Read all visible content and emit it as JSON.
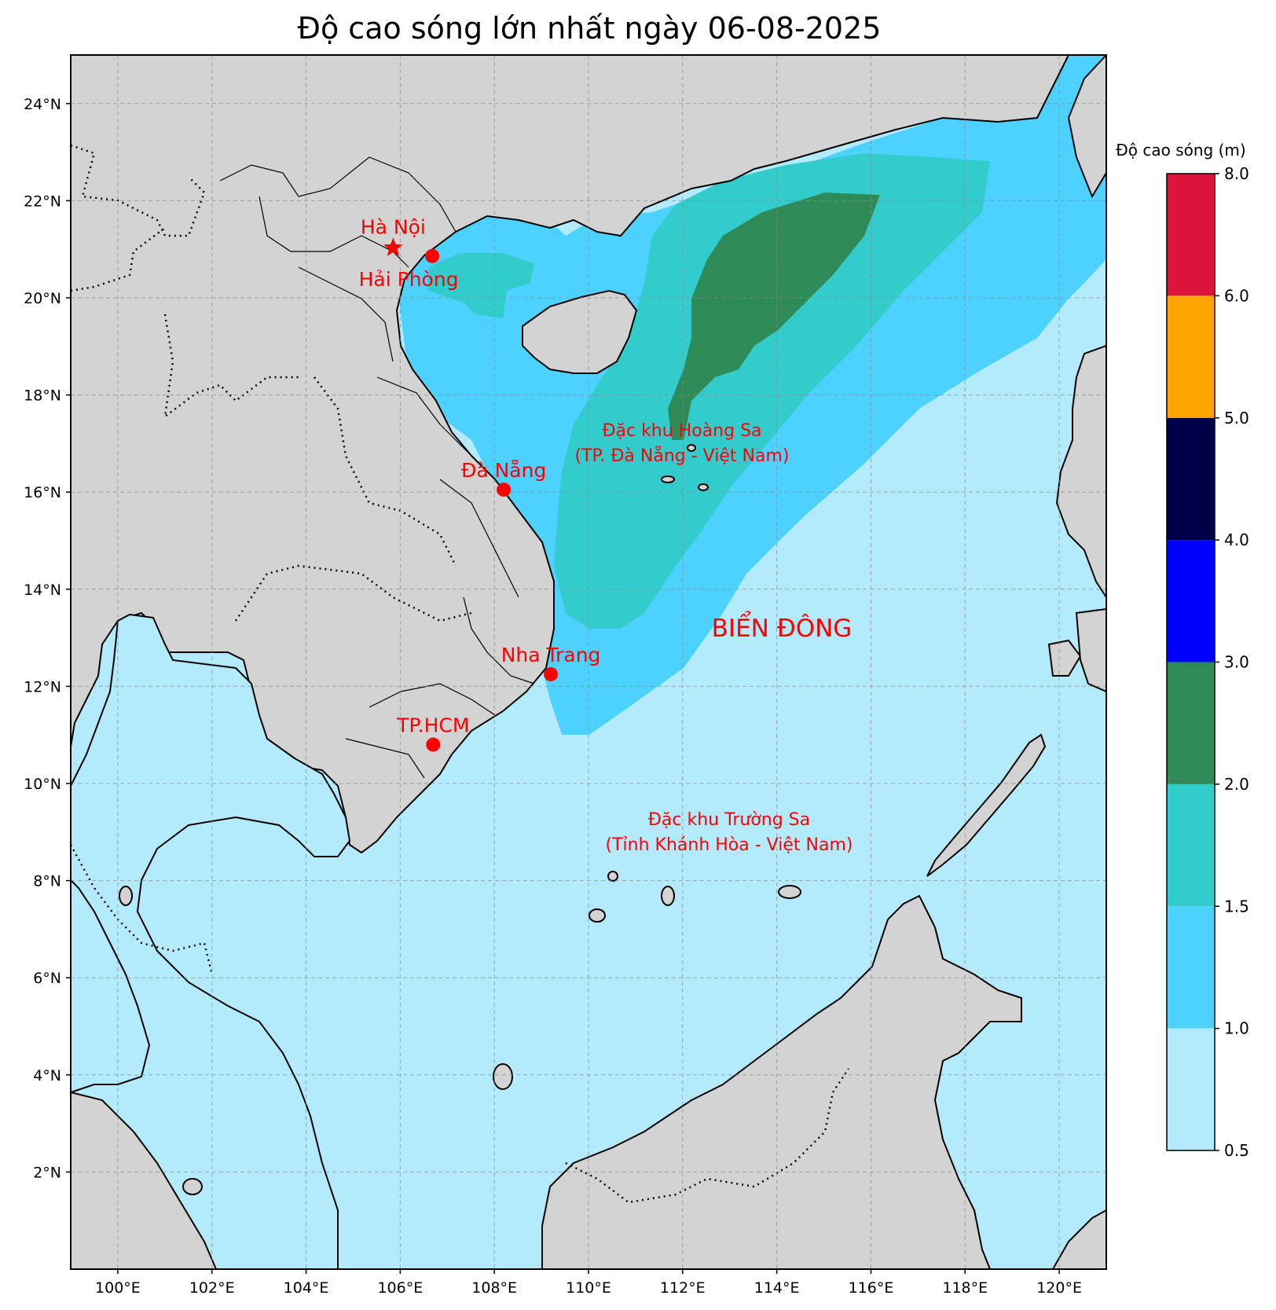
{
  "title": "Độ cao sóng lớn nhất ngày 06-08-2025",
  "map": {
    "lon_range": [
      99,
      121
    ],
    "lat_range": [
      0,
      25
    ],
    "lon_ticks": [
      "100°E",
      "102°E",
      "104°E",
      "106°E",
      "108°E",
      "110°E",
      "112°E",
      "114°E",
      "116°E",
      "118°E",
      "120°E"
    ],
    "lat_ticks": [
      "2°N",
      "4°N",
      "6°N",
      "8°N",
      "10°N",
      "12°N",
      "14°N",
      "16°N",
      "18°N",
      "20°N",
      "22°N",
      "24°N"
    ],
    "gridlines": true
  },
  "places": [
    {
      "name": "Hà Nội",
      "lon": 105.85,
      "lat": 21.03,
      "marker": "star"
    },
    {
      "name": "Hải Phòng",
      "lon": 106.68,
      "lat": 20.86,
      "marker": "circle"
    },
    {
      "name": "Đà Nẵng",
      "lon": 108.2,
      "lat": 16.05,
      "marker": "circle"
    },
    {
      "name": "Nha Trang",
      "lon": 109.2,
      "lat": 12.25,
      "marker": "circle"
    },
    {
      "name": "TP.HCM",
      "lon": 106.7,
      "lat": 10.8,
      "marker": "circle"
    }
  ],
  "region_labels": [
    {
      "line1": "Đặc khu Hoàng Sa",
      "line2": "(TP. Đà Nẵng - Việt Nam)"
    },
    {
      "line1": "Đặc khu Trường Sa",
      "line2": "(Tỉnh Khánh Hòa - Việt Nam)"
    }
  ],
  "sea_label": "BIỂN ĐÔNG",
  "colorbar": {
    "label": "Độ cao sóng (m)",
    "ticks": [
      "0.5",
      "1.0",
      "1.5",
      "2.0",
      "3.0",
      "4.0",
      "5.0",
      "6.0",
      "8.0"
    ],
    "colors": [
      "#b3ebfd",
      "#4dd1ff",
      "#33cccc",
      "#2e8b57",
      "#0000ff",
      "#000048",
      "#ffa500",
      "#dc143c"
    ]
  },
  "colors": {
    "land": "#d3d3d3",
    "marker": "#ff0000",
    "label": "#ff0000"
  }
}
